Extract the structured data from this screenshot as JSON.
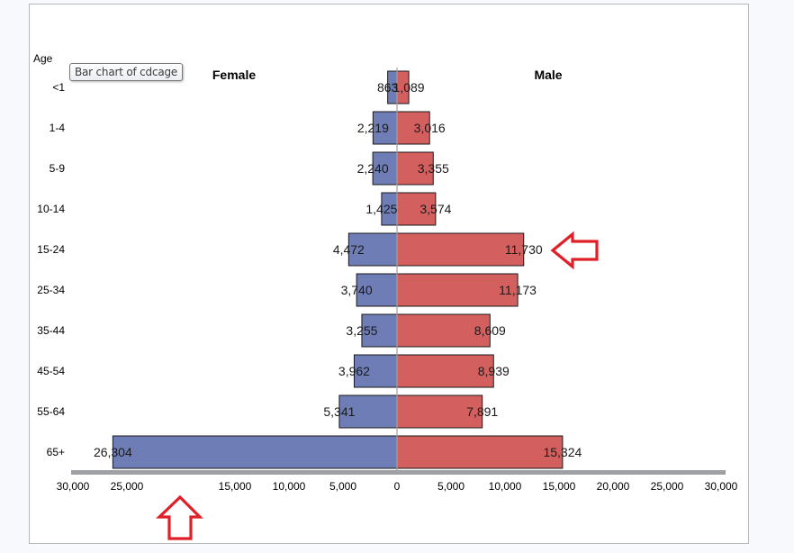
{
  "tooltip": {
    "text": "Bar chart of cdcage"
  },
  "colors": {
    "female_fill": "#6e7db5",
    "male_fill": "#d45f5f",
    "bar_stroke": "#1a1a1a",
    "axis_band": "#9ea0a3",
    "center_line": "#a0a0a0",
    "annotation_arrow": "#e02028",
    "frame_border": "#b8b8b8",
    "page_background": "#f8f9fd"
  },
  "chart_data": {
    "type": "bar",
    "orientation": "horizontal",
    "layout": "butterfly / population pyramid",
    "title": "",
    "ylabel": "Age",
    "xlabel": "",
    "panel_titles": {
      "left": "Female",
      "right": "Male"
    },
    "categories": [
      "<1",
      "1-4",
      "5-9",
      "10-14",
      "15-24",
      "25-34",
      "35-44",
      "45-54",
      "55-64",
      "65+"
    ],
    "series": [
      {
        "name": "Female",
        "side": "left",
        "values": [
          863,
          2219,
          2240,
          1425,
          4472,
          3740,
          3255,
          3962,
          5341,
          26304
        ],
        "labels": [
          "863",
          "2,219",
          "2,240",
          "1,425",
          "4,472",
          "3,740",
          "3,255",
          "3,962",
          "5,341",
          "26,304"
        ]
      },
      {
        "name": "Male",
        "side": "right",
        "values": [
          1089,
          3016,
          3355,
          3574,
          11730,
          11173,
          8609,
          8939,
          7891,
          15324
        ],
        "labels": [
          "1,089",
          "3,016",
          "3,355",
          "3,574",
          "11,730",
          "11,173",
          "8,609",
          "8,939",
          "7,891",
          "15,324"
        ]
      }
    ],
    "xlim": [
      -30000,
      30000
    ],
    "x_ticks_left": [
      "30,000",
      "25,000",
      "15,000",
      "10,000",
      "5,000"
    ],
    "x_ticks_left_values": [
      30000,
      25000,
      15000,
      10000,
      5000
    ],
    "x_tick_zero": "0",
    "x_ticks_right": [
      "5,000",
      "10,000",
      "15,000",
      "20,000",
      "25,000",
      "30,000"
    ],
    "x_ticks_right_values": [
      5000,
      10000,
      15000,
      20000,
      25000,
      30000
    ],
    "note": "The 20,000 tick on the female (left) side is missing from the axis",
    "grid": false,
    "legend": "none (side panel titles instead)",
    "annotations": [
      {
        "type": "arrow",
        "direction": "left",
        "points_to": "Male 15-24 value 11,730"
      },
      {
        "type": "arrow",
        "direction": "up",
        "points_to": "missing 20,000 tick on left axis"
      }
    ]
  }
}
